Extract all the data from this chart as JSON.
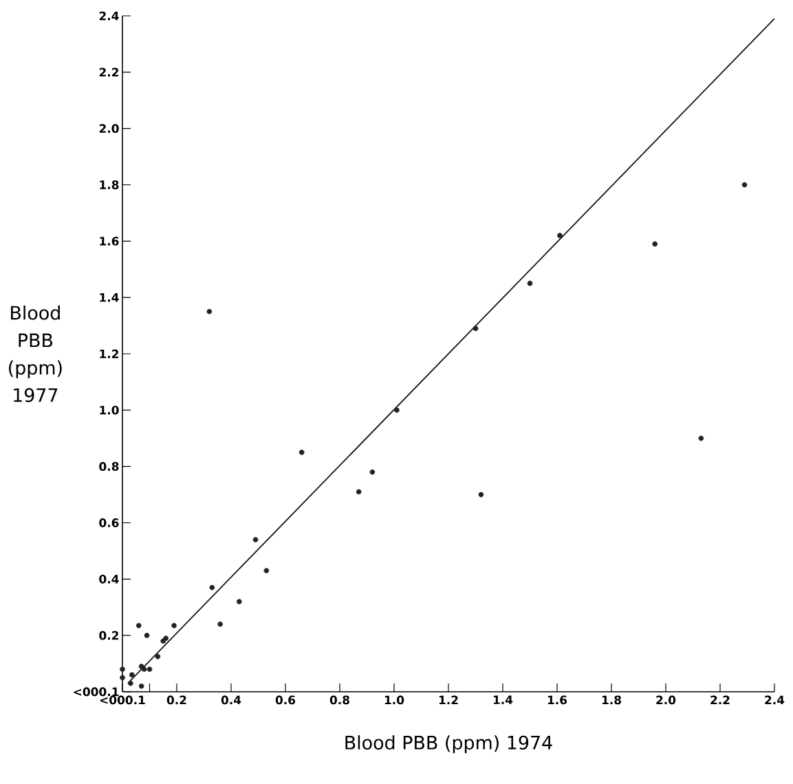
{
  "chart_data": {
    "type": "scatter",
    "xlabel": "Blood PBB (ppm)  1974",
    "ylabel": "Blood PBB (ppm) 1977",
    "xlim": [
      0,
      2.4
    ],
    "ylim": [
      0,
      2.4
    ],
    "xticks": [
      {
        "value": 0,
        "label": "<000.1"
      },
      {
        "value": 0.1,
        "label": null
      },
      0.2,
      0.4,
      0.6,
      0.8,
      {
        "value": 1.0,
        "label": "1.0"
      },
      1.2,
      1.4,
      1.6,
      1.8,
      {
        "value": 2.0,
        "label": "2.0"
      },
      2.2,
      2.4
    ],
    "yticks": [
      {
        "value": 0,
        "label": "<000.1"
      },
      0.2,
      0.4,
      0.6,
      0.8,
      {
        "value": 1.0,
        "label": "1.0"
      },
      1.2,
      1.4,
      1.6,
      1.8,
      {
        "value": 2.0,
        "label": "2.0"
      },
      2.2,
      2.4
    ],
    "grid": false,
    "series": [
      {
        "marker": "circle",
        "color": "#222222",
        "x": [
          0.32,
          1.3,
          1.01,
          0.66,
          0.92,
          0.87,
          1.32,
          2.29,
          1.61,
          1.96,
          1.5,
          2.13,
          0.33,
          0.43,
          0.36,
          0.06,
          0.09,
          0.19,
          0.16,
          0.15,
          0.13,
          0.1,
          0.08,
          0.07,
          0.035,
          0.03,
          0.07,
          0.0,
          0.0,
          0.49,
          0.53
        ],
        "values": [
          1.35,
          1.29,
          1.0,
          0.85,
          0.78,
          0.71,
          0.7,
          1.8,
          1.62,
          1.59,
          1.45,
          0.9,
          0.37,
          0.32,
          0.24,
          0.235,
          0.2,
          0.235,
          0.19,
          0.18,
          0.125,
          0.08,
          0.08,
          0.09,
          0.06,
          0.03,
          0.02,
          0.08,
          0.05,
          0.54,
          0.43
        ]
      },
      {
        "type": "line",
        "color": "#111111",
        "x": [
          0.02,
          2.4
        ],
        "values": [
          0.03,
          2.39
        ]
      }
    ]
  }
}
